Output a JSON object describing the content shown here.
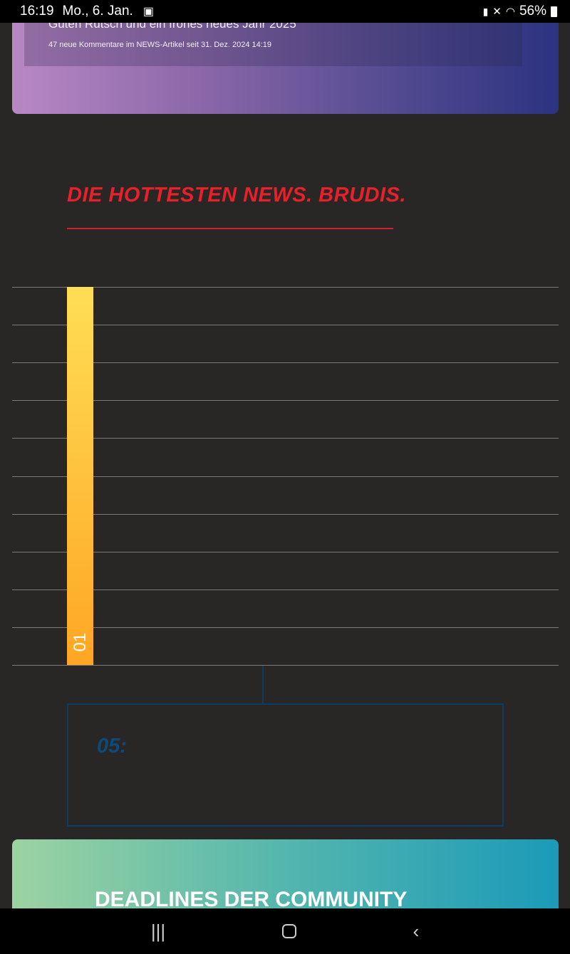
{
  "status_bar": {
    "time": "16:19",
    "date": "Mo., 6. Jan.",
    "battery": "56%"
  },
  "top_card": {
    "title": "Guten Rutsch und ein frohes neues Jahr 2025",
    "meta": "47 neue Kommentare im NEWS-Artikel seit 31. Dez. 2024 14:19"
  },
  "hot_news": {
    "heading": "DIE HOTTESTEN NEWS. BRUDIS.",
    "rank_label": "01",
    "box_label": "05:"
  },
  "community": {
    "title": "DEADLINES DER COMMUNITY"
  },
  "colors": {
    "heading": "#e8202a",
    "bar_top": "#ffde55",
    "bar_bottom": "#ffa624",
    "box_border": "#0d3d62"
  }
}
